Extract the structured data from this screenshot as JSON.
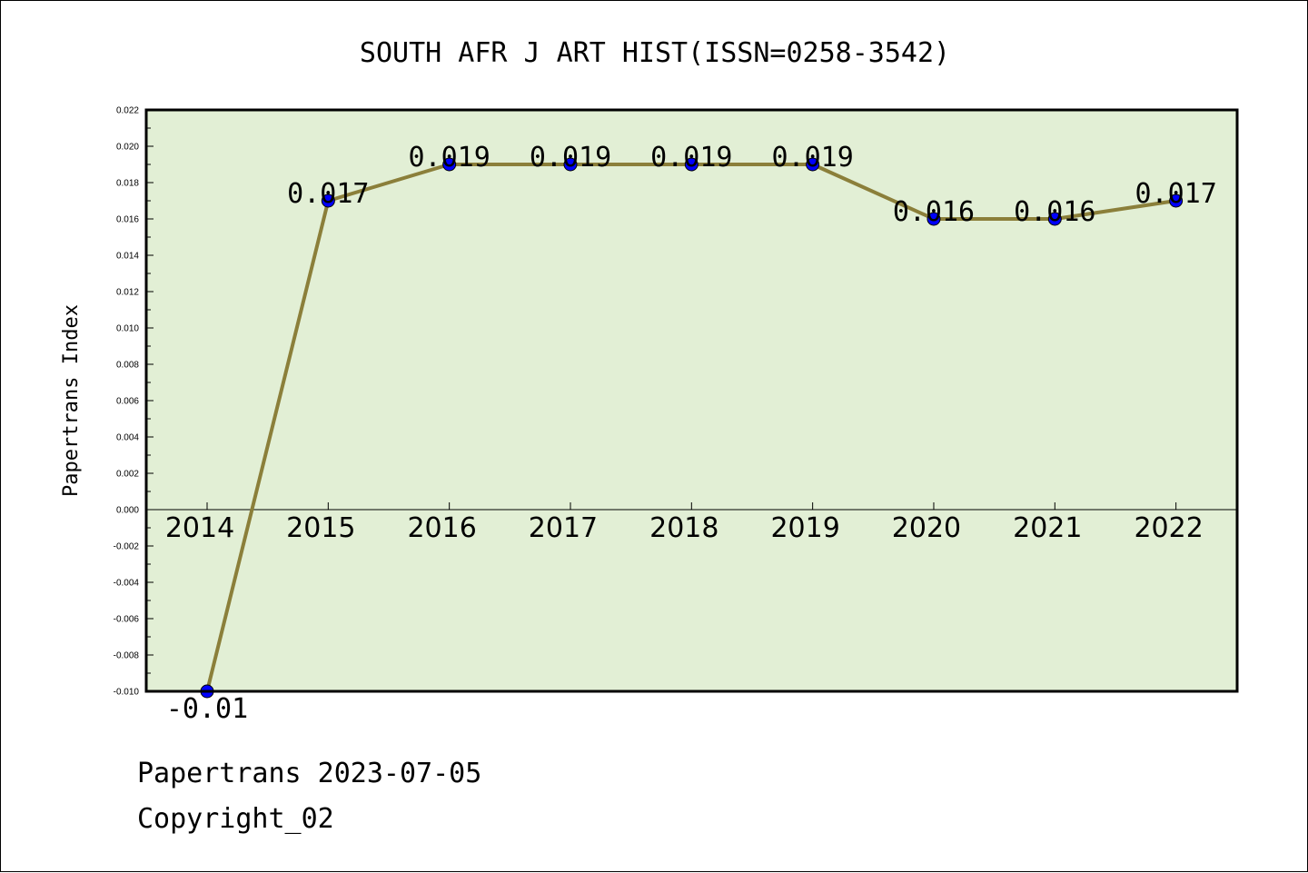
{
  "chart_data": {
    "type": "line",
    "title": "SOUTH AFR J ART HIST(ISSN=0258-3542)",
    "xlabel": "",
    "ylabel": "Papertrans Index",
    "categories": [
      "2014",
      "2015",
      "2016",
      "2017",
      "2018",
      "2019",
      "2020",
      "2021",
      "2022"
    ],
    "values": [
      -0.01,
      0.017,
      0.019,
      0.019,
      0.019,
      0.019,
      0.016,
      0.016,
      0.017
    ],
    "data_labels": [
      "-0.01",
      "0.017",
      "0.019",
      "0.019",
      "0.019",
      "0.019",
      "0.016",
      "0.016",
      "0.017"
    ],
    "ylim": [
      -0.01,
      0.022
    ],
    "yticks": [
      "-0.010",
      "-0.008",
      "-0.006",
      "-0.004",
      "-0.002",
      "0.000",
      "0.002",
      "0.004",
      "0.006",
      "0.008",
      "0.010",
      "0.012",
      "0.014",
      "0.016",
      "0.018",
      "0.020",
      "0.022"
    ],
    "grid": false,
    "colors": {
      "plot_background": "#e2efd5",
      "line": "#8b7f3a",
      "marker": "#0000ff"
    }
  },
  "footer": {
    "line1": "Papertrans 2023-07-05",
    "line2": "Copyright_02"
  }
}
